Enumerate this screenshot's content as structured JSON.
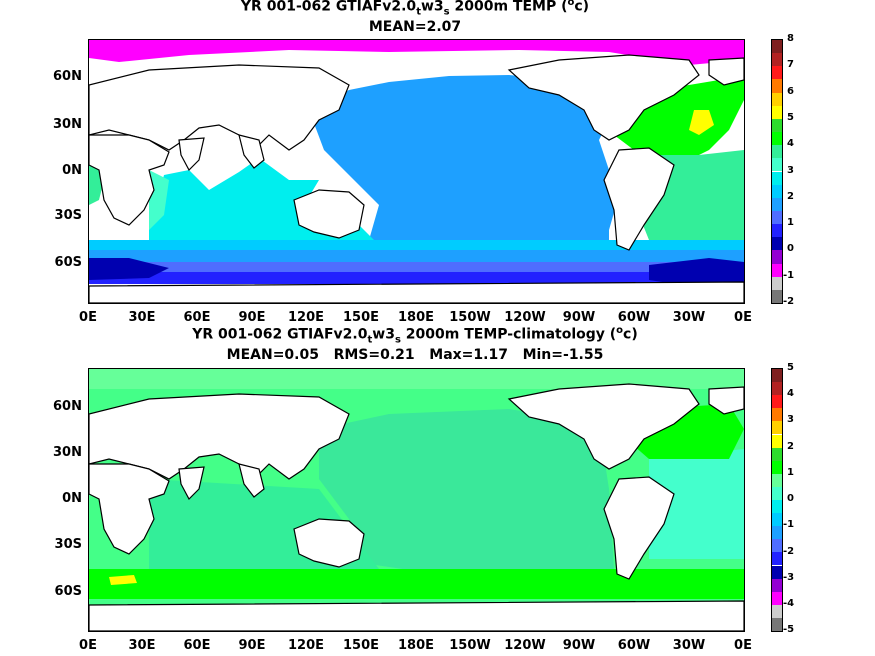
{
  "panels": [
    {
      "id": "top",
      "title_parts": {
        "pre": "YR 001-062 GTIAFv2.0",
        "sub1": "t",
        "mid": "w3",
        "sub2": "s",
        "post": " 2000m TEMP (",
        "sup": "o",
        "end": "c)"
      },
      "stats": "MEAN=2.07",
      "colorbar": {
        "labels": [
          "8",
          "7",
          "6",
          "5",
          "4",
          "3",
          "2",
          "1",
          "0",
          "-1",
          "-2"
        ],
        "colors": [
          "#7f1f1f",
          "#b22222",
          "#ff1a1a",
          "#ff7a00",
          "#ffd000",
          "#ffff00",
          "#2cdc2c",
          "#00ff00",
          "#33ee99",
          "#44ffcc",
          "#00eeee",
          "#00ccff",
          "#1ea0ff",
          "#4f6dff",
          "#2222ff",
          "#0000b0",
          "#9400d3",
          "#ff00ff",
          "#cccccc",
          "#777777"
        ]
      }
    },
    {
      "id": "bottom",
      "title_parts": {
        "pre": "YR 001-062 GTIAFv2.0",
        "sub1": "t",
        "mid": "w3",
        "sub2": "s",
        "post": " 2000m TEMP-climatology (",
        "sup": "o",
        "end": "c)"
      },
      "stats": "MEAN=0.05   RMS=0.21   Max=1.17   Min=-1.55",
      "colorbar": {
        "labels": [
          "5",
          "4",
          "3",
          "2",
          "1",
          "0",
          "-1",
          "-2",
          "-3",
          "-4",
          "-5"
        ],
        "colors": [
          "#7f1f1f",
          "#b22222",
          "#ff1a1a",
          "#ff7a00",
          "#ffd000",
          "#ffff00",
          "#2cdc2c",
          "#00ff00",
          "#66ff99",
          "#44ffcc",
          "#00eeee",
          "#00ccff",
          "#1ea0ff",
          "#4f6dff",
          "#2222ff",
          "#0000b0",
          "#9400d3",
          "#ff00ff",
          "#cccccc",
          "#777777"
        ]
      }
    }
  ],
  "lat_labels": [
    "60N",
    "30N",
    "0N",
    "30S",
    "60S"
  ],
  "lon_labels": [
    "0E",
    "30E",
    "60E",
    "90E",
    "120E",
    "150E",
    "180E",
    "150W",
    "120W",
    "90W",
    "60W",
    "30W",
    "0E"
  ]
}
